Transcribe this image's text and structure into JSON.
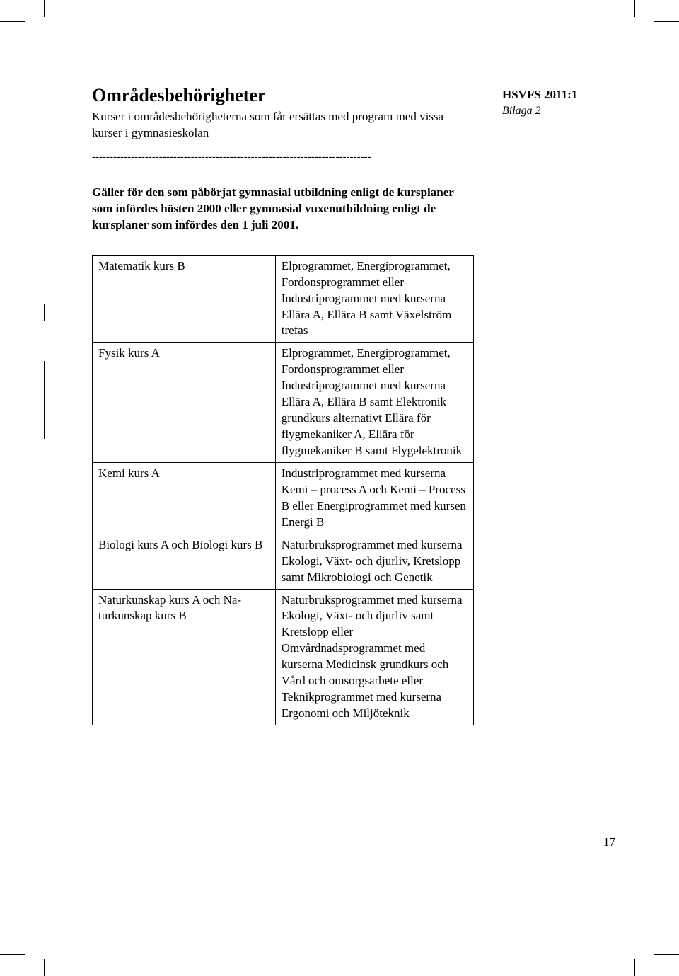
{
  "header": {
    "title": "Områdesbehörigheter",
    "subtitle": "Kurser i områdesbehörigheterna som får ersättas med program med vissa kurser i gymnasieskolan",
    "doc_ref": "HSVFS 2011:1",
    "bilaga": "Bilaga 2"
  },
  "dashes": "-------------------------------------------------------------------------------",
  "intro": "Gäller för den som påbörjat gymnasial utbildning enligt de kursplaner som infördes hösten 2000 eller gymnasial vuxenutbildning enligt de kursplaner som infördes den 1 juli 2001.",
  "table": {
    "rows": [
      {
        "left": "Matematik kurs B",
        "right": "Elprogrammet, Energipro­grammet, Fordonsprogrammet eller Industriprogrammet med kurserna Ellära A, Ellära B samt Växelström trefas"
      },
      {
        "left": "Fysik kurs A",
        "right": "Elprogrammet, Energipro­grammet, Fordonsprogrammet eller Industriprogrammet med kurserna Ellära A, Ellära B samt Elektronik grundkurs alterna­tivt Ellära för flygmekaniker A, Ellära för flygmekaniker B samt Flygelektronik"
      },
      {
        "left": "Kemi kurs A",
        "right": "Industriprogrammet med kurser­na Kemi – process A och Kemi – Process B eller Energiprogram­met med kursen Energi B"
      },
      {
        "left": "Biologi kurs A och Biologi kurs B",
        "right": "Naturbruksprogrammet med kurserna Ekologi, Växt- och djurliv, Kretslopp samt Mikro­biologi och Genetik"
      },
      {
        "left": "Naturkunskap kurs A och Na­turkunskap kurs B",
        "right": "Naturbruksprogrammet med kurserna Ekologi, Växt- och djurliv samt Kretslopp eller Omvårdnadsprogrammet med kurserna Medicinsk grundkurs och Vård och omsorgsarbete eller Teknikprogrammet med kurserna Ergonomi och Miljö­teknik"
      }
    ]
  },
  "page_number": "17"
}
